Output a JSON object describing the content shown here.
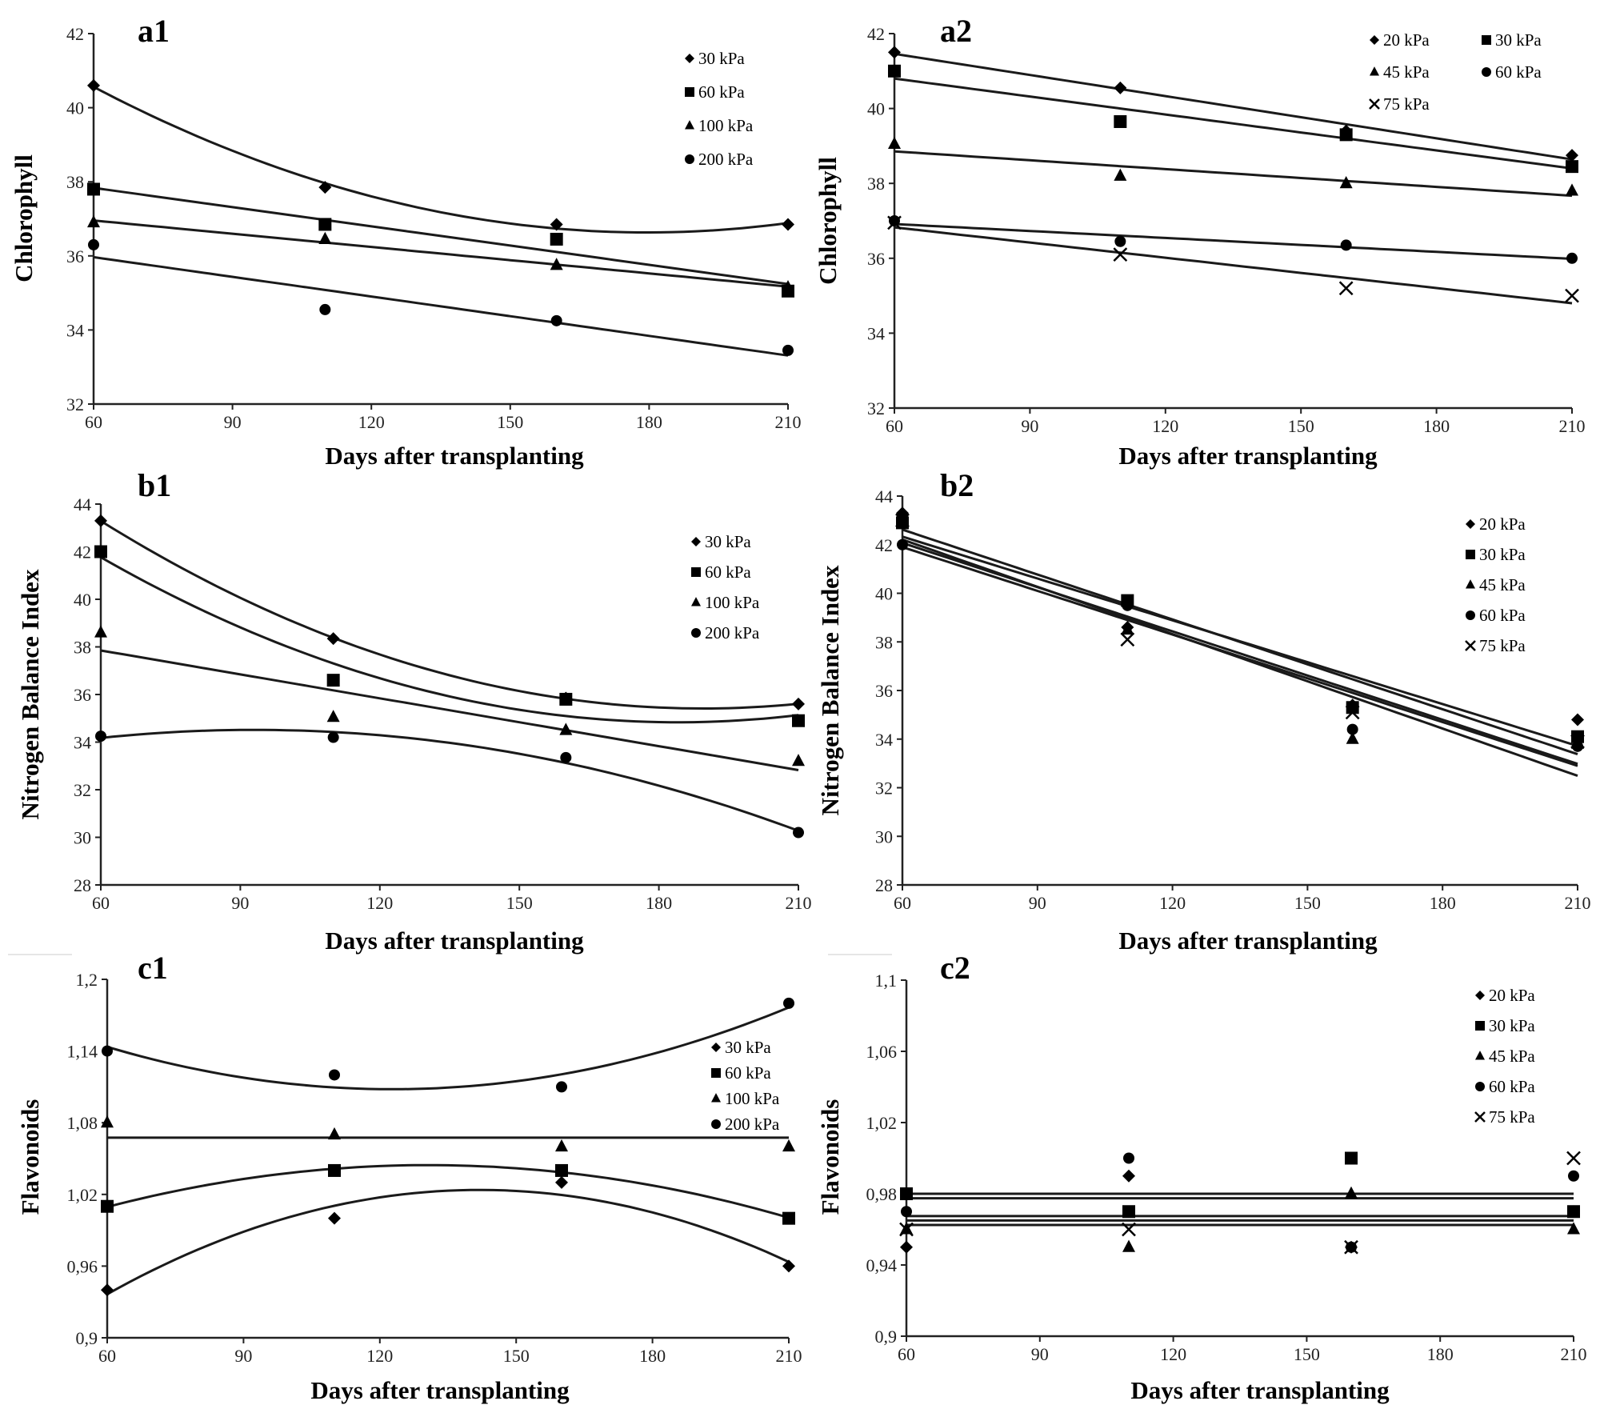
{
  "figure": {
    "x_axis_title": "Days after transplanting"
  },
  "chart_data": [
    {
      "id": "a1",
      "type": "scatter",
      "title": "a1",
      "fit": "curve",
      "ylabel": "Chlorophyll",
      "xlabel": "Days after transplanting",
      "xlim": [
        60,
        210
      ],
      "ylim": [
        32,
        42
      ],
      "xticks": [
        "60",
        "90",
        "120",
        "150",
        "180",
        "210"
      ],
      "yticks": [
        "32",
        "34",
        "36",
        "38",
        "40",
        "42"
      ],
      "x": [
        60,
        110,
        160,
        210
      ],
      "series": [
        {
          "name": "30 kPa",
          "marker": "diamond",
          "values": [
            40.6,
            37.85,
            36.85,
            36.85
          ],
          "fit": "quadratic"
        },
        {
          "name": "60 kPa",
          "marker": "square",
          "values": [
            37.8,
            36.85,
            36.45,
            35.05
          ],
          "fit": "linear"
        },
        {
          "name": "100 kPa",
          "marker": "triangle",
          "values": [
            36.9,
            36.45,
            35.75,
            35.15
          ],
          "fit": "linear"
        },
        {
          "name": "200 kPa",
          "marker": "circle",
          "values": [
            36.3,
            34.55,
            34.25,
            33.45
          ],
          "fit": "linear"
        }
      ]
    },
    {
      "id": "a2",
      "type": "scatter",
      "title": "a2",
      "fit": "linear",
      "ylabel": "Chlorophyll",
      "xlabel": "Days after transplanting",
      "xlim": [
        60,
        210
      ],
      "ylim": [
        32,
        42
      ],
      "xticks": [
        "60",
        "90",
        "120",
        "150",
        "180",
        "210"
      ],
      "yticks": [
        "32",
        "34",
        "36",
        "38",
        "40",
        "42"
      ],
      "x": [
        60,
        110,
        160,
        210
      ],
      "series": [
        {
          "name": "20 kPa",
          "marker": "diamond",
          "values": [
            41.5,
            40.55,
            39.4,
            38.75
          ],
          "fit": "linear"
        },
        {
          "name": "30 kPa",
          "marker": "square",
          "values": [
            41.0,
            39.65,
            39.3,
            38.45
          ],
          "fit": "linear"
        },
        {
          "name": "45 kPa",
          "marker": "triangle",
          "values": [
            39.05,
            38.2,
            38.0,
            37.8
          ],
          "fit": "linear"
        },
        {
          "name": "60 kPa",
          "marker": "circle",
          "values": [
            37.0,
            36.45,
            36.35,
            36.0
          ],
          "fit": "linear"
        },
        {
          "name": "75 kPa",
          "marker": "x",
          "values": [
            36.95,
            36.1,
            35.2,
            35.0
          ],
          "fit": "linear"
        }
      ]
    },
    {
      "id": "b1",
      "type": "scatter",
      "title": "b1",
      "fit": "curve",
      "ylabel": "Nitrogen Balance Index",
      "xlabel": "Days after transplanting",
      "xlim": [
        60,
        210
      ],
      "ylim": [
        28,
        44
      ],
      "xticks": [
        "60",
        "90",
        "120",
        "150",
        "180",
        "210"
      ],
      "yticks": [
        "28",
        "30",
        "32",
        "34",
        "36",
        "38",
        "40",
        "42",
        "44"
      ],
      "x": [
        60,
        110,
        160,
        210
      ],
      "series": [
        {
          "name": "30 kPa",
          "marker": "diamond",
          "values": [
            43.3,
            38.35,
            35.85,
            35.6
          ],
          "fit": "quadratic"
        },
        {
          "name": "60 kPa",
          "marker": "square",
          "values": [
            42.0,
            36.6,
            35.8,
            34.9
          ],
          "fit": "quadratic"
        },
        {
          "name": "100 kPa",
          "marker": "triangle",
          "values": [
            38.6,
            35.05,
            34.5,
            33.2
          ],
          "fit": "linear"
        },
        {
          "name": "200 kPa",
          "marker": "circle",
          "values": [
            34.25,
            34.2,
            33.35,
            30.2
          ],
          "fit": "quadratic"
        }
      ]
    },
    {
      "id": "b2",
      "type": "scatter",
      "title": "b2",
      "fit": "linear",
      "ylabel": "Nitrogen Balance Index",
      "xlabel": "Days after transplanting",
      "xlim": [
        60,
        210
      ],
      "ylim": [
        28,
        44
      ],
      "xticks": [
        "60",
        "90",
        "120",
        "150",
        "180",
        "210"
      ],
      "yticks": [
        "28",
        "30",
        "32",
        "34",
        "36",
        "38",
        "40",
        "42",
        "44"
      ],
      "x": [
        60,
        110,
        160,
        210
      ],
      "series": [
        {
          "name": "20 kPa",
          "marker": "diamond",
          "values": [
            43.3,
            38.6,
            35.4,
            34.8
          ],
          "fit": "linear"
        },
        {
          "name": "30 kPa",
          "marker": "square",
          "values": [
            42.9,
            39.7,
            35.3,
            34.1
          ],
          "fit": "linear"
        },
        {
          "name": "45 kPa",
          "marker": "triangle",
          "values": [
            43.1,
            38.5,
            34.0,
            33.8
          ],
          "fit": "linear"
        },
        {
          "name": "60 kPa",
          "marker": "circle",
          "values": [
            42.0,
            39.5,
            34.4,
            33.7
          ],
          "fit": "linear"
        },
        {
          "name": "75 kPa",
          "marker": "x",
          "values": [
            43.0,
            38.1,
            35.1,
            33.9
          ],
          "fit": "linear"
        }
      ]
    },
    {
      "id": "c1",
      "type": "scatter",
      "title": "c1",
      "fit": "curve",
      "ylabel": "Flavonoids",
      "xlabel": "Days after transplanting",
      "xlim": [
        60,
        210
      ],
      "ylim": [
        0.9,
        1.2
      ],
      "xticks": [
        "60",
        "90",
        "120",
        "150",
        "180",
        "210"
      ],
      "yticks": [
        "0,9",
        "0,96",
        "1,02",
        "1,08",
        "1,14",
        "1,2"
      ],
      "x": [
        60,
        110,
        160,
        210
      ],
      "series": [
        {
          "name": "30 kPa",
          "marker": "diamond",
          "values": [
            0.94,
            1.0,
            1.03,
            0.96
          ],
          "fit": "quadratic"
        },
        {
          "name": "60 kPa",
          "marker": "square",
          "values": [
            1.01,
            1.04,
            1.04,
            1.0
          ],
          "fit": "quadratic"
        },
        {
          "name": "100 kPa",
          "marker": "triangle",
          "values": [
            1.08,
            1.07,
            1.06,
            1.06
          ],
          "fit": "mean"
        },
        {
          "name": "200 kPa",
          "marker": "circle",
          "values": [
            1.14,
            1.12,
            1.11,
            1.18
          ],
          "fit": "quadratic"
        }
      ]
    },
    {
      "id": "c2",
      "type": "scatter",
      "title": "c2",
      "fit": "mean",
      "ylabel": "Flavonoids",
      "xlabel": "Days after transplanting",
      "xlim": [
        60,
        210
      ],
      "ylim": [
        0.9,
        1.1
      ],
      "xticks": [
        "60",
        "90",
        "120",
        "150",
        "180",
        "210"
      ],
      "yticks": [
        "0,9",
        "0,94",
        "0,98",
        "1,02",
        "1,06",
        "1,1"
      ],
      "x": [
        60,
        110,
        160,
        210
      ],
      "series": [
        {
          "name": "20 kPa",
          "marker": "diamond",
          "values": [
            0.95,
            0.99,
            0.95,
            0.97
          ],
          "fit": "mean"
        },
        {
          "name": "30 kPa",
          "marker": "square",
          "values": [
            0.98,
            0.97,
            1.0,
            0.97
          ],
          "fit": "mean"
        },
        {
          "name": "45 kPa",
          "marker": "triangle",
          "values": [
            0.96,
            0.95,
            0.98,
            0.96
          ],
          "fit": "mean"
        },
        {
          "name": "60 kPa",
          "marker": "circle",
          "values": [
            0.97,
            1.0,
            0.95,
            0.99
          ],
          "fit": "mean"
        },
        {
          "name": "75 kPa",
          "marker": "x",
          "values": [
            0.96,
            0.96,
            0.95,
            1.0
          ],
          "fit": "mean"
        }
      ]
    }
  ]
}
